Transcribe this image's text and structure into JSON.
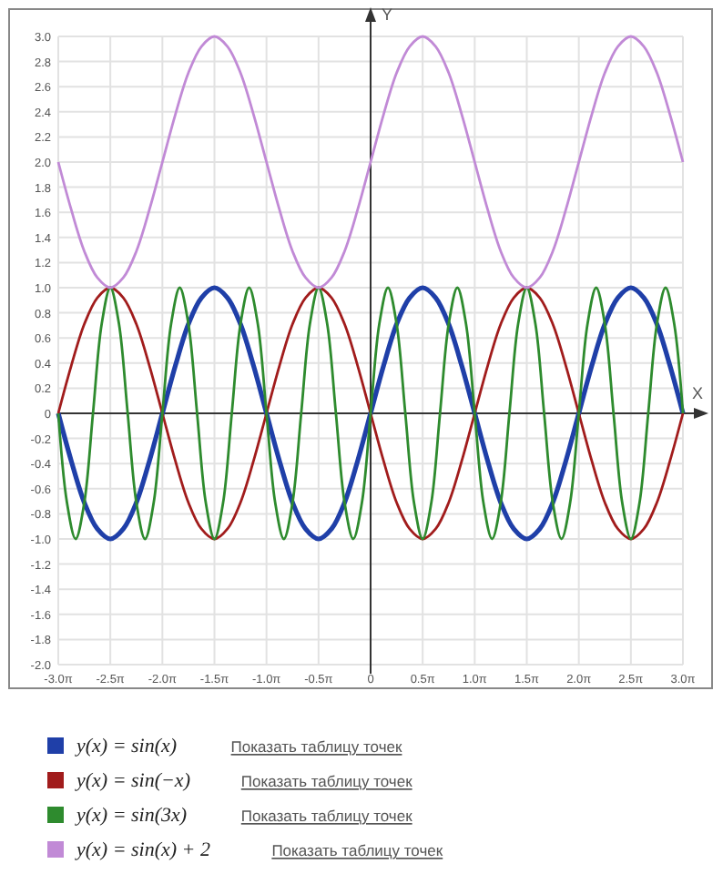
{
  "chart_data": {
    "type": "line",
    "xlabel": "X",
    "ylabel": "Y",
    "x": [
      -9.4248,
      -9.0321,
      -8.6394,
      -8.2467,
      -7.854,
      -7.4613,
      -7.0686,
      -6.6759,
      -6.2832,
      -5.8905,
      -5.4978,
      -5.1051,
      -4.7124,
      -4.3197,
      -3.927,
      -3.5343,
      -3.1416,
      -2.7489,
      -2.3562,
      -1.9635,
      -1.5708,
      -1.1781,
      -0.7854,
      -0.3927,
      0,
      0.3927,
      0.7854,
      1.1781,
      1.5708,
      1.9635,
      2.3562,
      2.7489,
      3.1416,
      3.5343,
      3.927,
      4.3197,
      4.7124,
      5.1051,
      5.4978,
      5.8905,
      6.2832,
      6.6759,
      7.0686,
      7.4613,
      7.854,
      8.2467,
      8.6394,
      9.0321,
      9.4248
    ],
    "series": [
      {
        "name": "y(x) = sin(x)",
        "color": "#1f3fa8",
        "values": [
          0,
          -0.38,
          -0.71,
          -0.92,
          -1,
          -0.92,
          -0.71,
          -0.38,
          0,
          0.38,
          0.71,
          0.92,
          1,
          0.92,
          0.71,
          0.38,
          0,
          -0.38,
          -0.71,
          -0.92,
          -1,
          -0.92,
          -0.71,
          -0.38,
          0,
          0.38,
          0.71,
          0.92,
          1,
          0.92,
          0.71,
          0.38,
          0,
          -0.38,
          -0.71,
          -0.92,
          -1,
          -0.92,
          -0.71,
          -0.38,
          0,
          0.38,
          0.71,
          0.92,
          1,
          0.92,
          0.71,
          0.38,
          0
        ]
      },
      {
        "name": "y(x) = sin(−x)",
        "color": "#a11c1c",
        "values": [
          0,
          0.38,
          0.71,
          0.92,
          1,
          0.92,
          0.71,
          0.38,
          0,
          -0.38,
          -0.71,
          -0.92,
          -1,
          -0.92,
          -0.71,
          -0.38,
          0,
          0.38,
          0.71,
          0.92,
          1,
          0.92,
          0.71,
          0.38,
          0,
          -0.38,
          -0.71,
          -0.92,
          -1,
          -0.92,
          -0.71,
          -0.38,
          0,
          0.38,
          0.71,
          0.92,
          1,
          0.92,
          0.71,
          0.38,
          0,
          -0.38,
          -0.71,
          -0.92,
          -1,
          -0.92,
          -0.71,
          -0.38,
          0
        ]
      },
      {
        "name": "y(x) = sin(3x)",
        "color": "#2e8b2e",
        "x": [
          -9.4248,
          -9.163,
          -8.9012,
          -8.6394,
          -8.3776,
          -8.1158,
          -7.854,
          -7.5922,
          -7.3304,
          -7.0686,
          -6.8068,
          -6.545,
          -6.2832,
          -6.0214,
          -5.7596,
          -5.4978,
          -5.236,
          -4.9742,
          -4.7124,
          -4.4506,
          -4.1888,
          -3.927,
          -3.6652,
          -3.4034,
          -3.1416,
          -2.8798,
          -2.618,
          -2.3562,
          -2.0944,
          -1.8326,
          -1.5708,
          -1.309,
          -1.0472,
          -0.7854,
          -0.5236,
          -0.2618,
          0,
          0.2618,
          0.5236,
          0.7854,
          1.0472,
          1.309,
          1.5708,
          1.8326,
          2.0944,
          2.3562,
          2.618,
          2.8798,
          3.1416,
          3.4034,
          3.6652,
          3.927,
          4.1888,
          4.4506,
          4.7124,
          4.9742,
          5.236,
          5.4978,
          5.7596,
          6.0214,
          6.2832,
          6.545,
          6.8068,
          7.0686,
          7.3304,
          7.5922,
          7.854,
          8.1158,
          8.3776,
          8.6394,
          8.9012,
          9.163,
          9.4248
        ],
        "values": [
          0,
          -0.71,
          -1,
          -0.71,
          0,
          0.71,
          1,
          0.71,
          0,
          -0.71,
          -1,
          -0.71,
          0,
          0.71,
          1,
          0.71,
          0,
          -0.71,
          -1,
          -0.71,
          0,
          0.71,
          1,
          0.71,
          0,
          -0.71,
          -1,
          -0.71,
          0,
          0.71,
          1,
          0.71,
          0,
          -0.71,
          -1,
          -0.71,
          0,
          0.71,
          1,
          0.71,
          0,
          -0.71,
          -1,
          -0.71,
          0,
          0.71,
          1,
          0.71,
          0,
          -0.71,
          -1,
          -0.71,
          0,
          0.71,
          1,
          0.71,
          0,
          -0.71,
          -1,
          -0.71,
          0,
          0.71,
          1,
          0.71,
          0,
          -0.71,
          -1,
          -0.71,
          0,
          0.71,
          1,
          0.71,
          0
        ]
      },
      {
        "name": "y(x) = sin(x) + 2",
        "color": "#c18ad6",
        "values": [
          2,
          1.62,
          1.29,
          1.08,
          1,
          1.08,
          1.29,
          1.62,
          2,
          2.38,
          2.71,
          2.92,
          3,
          2.92,
          2.71,
          2.38,
          2,
          1.62,
          1.29,
          1.08,
          1,
          1.08,
          1.29,
          1.62,
          2,
          2.38,
          2.71,
          2.92,
          3,
          2.92,
          2.71,
          2.38,
          2,
          1.62,
          1.29,
          1.08,
          1,
          1.08,
          1.29,
          1.62,
          2,
          2.38,
          2.71,
          2.92,
          3,
          2.92,
          2.71,
          2.38,
          2
        ]
      }
    ],
    "xlim": [
      -9.4248,
      9.4248
    ],
    "xticks": [
      {
        "value": -9.4248,
        "label": "-3.0π"
      },
      {
        "value": -7.854,
        "label": "-2.5π"
      },
      {
        "value": -6.2832,
        "label": "-2.0π"
      },
      {
        "value": -4.7124,
        "label": "-1.5π"
      },
      {
        "value": -3.1416,
        "label": "-1.0π"
      },
      {
        "value": -1.5708,
        "label": "-0.5π"
      },
      0,
      {
        "value": 1.5708,
        "label": "0.5π"
      },
      {
        "value": 3.1416,
        "label": "1.0π"
      },
      {
        "value": 4.7124,
        "label": "1.5π"
      },
      {
        "value": 6.2832,
        "label": "2.0π"
      },
      {
        "value": 7.854,
        "label": "2.5π"
      },
      {
        "value": 9.4248,
        "label": "3.0π"
      }
    ],
    "ylim": [
      -2,
      3
    ],
    "yticks": [
      {
        "value": -2,
        "label": "-2.0"
      },
      -1.8,
      -1.6,
      -1.4,
      -1.2,
      {
        "value": -1,
        "label": "-1.0"
      },
      -0.8,
      -0.6,
      -0.4,
      -0.2,
      0,
      0.2,
      0.4,
      0.6,
      0.8,
      {
        "value": 1,
        "label": "1.0"
      },
      1.2,
      1.4,
      1.6,
      1.8,
      {
        "value": 2,
        "label": "2.0"
      },
      2.2,
      2.4,
      2.6,
      2.8,
      {
        "value": 3,
        "label": "3.0"
      }
    ],
    "grid": true,
    "legend": "bottom",
    "marker": "none",
    "line_style": "solid",
    "annotations": [
      "Показать таблицу точек",
      "Показать таблицу точек",
      "Показать таблицу точек",
      "Показать таблицу точек"
    ]
  }
}
